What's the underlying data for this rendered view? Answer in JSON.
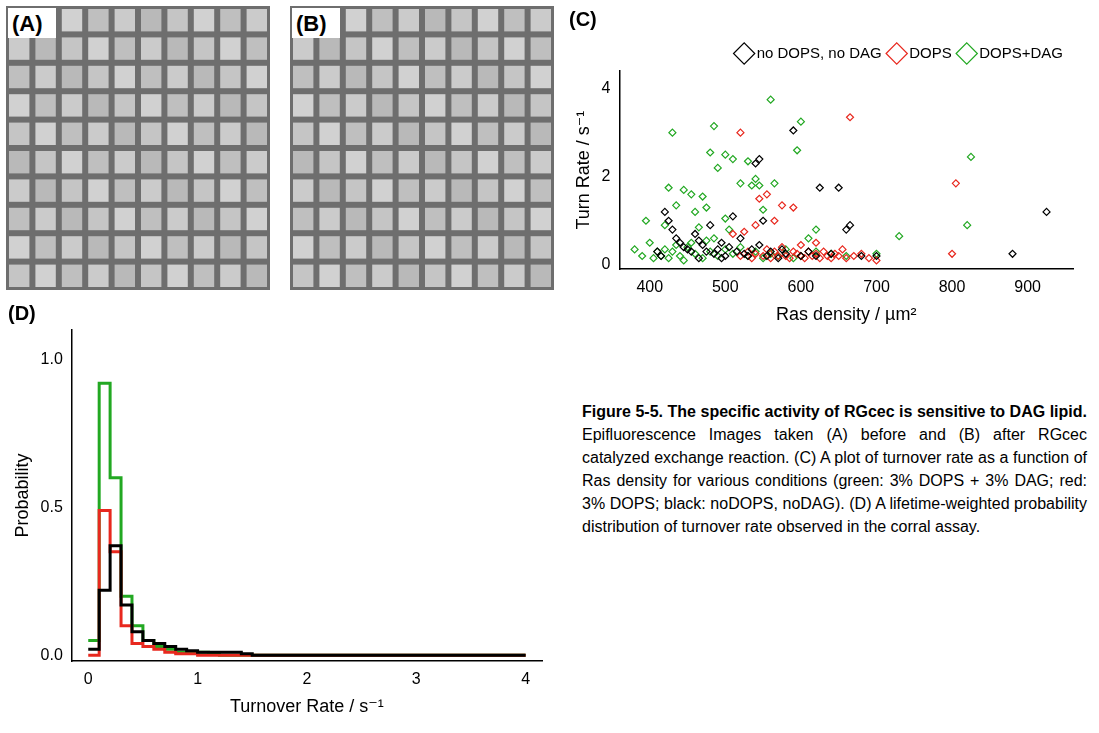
{
  "images": [
    {
      "label": "(A)"
    },
    {
      "label": "(B)"
    }
  ],
  "chart_data": [
    {
      "type": "scatter",
      "title": "(C)",
      "x_label": "Ras density / µm²",
      "y_label": "Turn Rate / s⁻¹",
      "xlim": [
        360,
        960
      ],
      "xticks": [
        400,
        500,
        600,
        700,
        800,
        900
      ],
      "ylim": [
        -0.1,
        4.4
      ],
      "yticks": [
        0,
        2,
        4
      ],
      "legend": "top right",
      "grid": false,
      "series": [
        {
          "name": "no DOPS, no DAG",
          "color": "#000000",
          "marker": "diamond",
          "x": [
            410,
            415,
            420,
            425,
            430,
            435,
            440,
            445,
            450,
            455,
            460,
            465,
            465,
            470,
            475,
            480,
            485,
            490,
            495,
            495,
            500,
            505,
            510,
            515,
            520,
            525,
            530,
            535,
            540,
            545,
            545,
            550,
            555,
            560,
            570,
            575,
            580,
            590,
            600,
            610,
            620,
            625,
            640,
            650,
            660,
            665,
            680,
            700,
            880,
            925
          ],
          "values": [
            0.3,
            0.2,
            1.2,
            1.0,
            0.8,
            0.6,
            0.5,
            0.4,
            0.35,
            0.3,
            0.7,
            0.55,
            0.15,
            0.45,
            0.3,
            0.9,
            0.25,
            0.35,
            0.5,
            0.15,
            0.2,
            0.4,
            1.1,
            0.3,
            0.6,
            0.25,
            0.2,
            0.35,
            2.3,
            2.4,
            0.45,
            1.0,
            0.2,
            0.3,
            0.15,
            0.35,
            0.25,
            3.05,
            0.2,
            0.3,
            0.2,
            1.75,
            0.25,
            1.75,
            0.8,
            0.9,
            0.2,
            0.2,
            0.25,
            1.2
          ]
        },
        {
          "name": "DOPS",
          "color": "#e8281e",
          "marker": "diamond",
          "x": [
            510,
            520,
            520,
            525,
            530,
            535,
            540,
            540,
            545,
            550,
            555,
            555,
            560,
            565,
            565,
            570,
            575,
            575,
            580,
            585,
            590,
            590,
            595,
            600,
            600,
            605,
            610,
            615,
            620,
            620,
            625,
            630,
            635,
            640,
            645,
            650,
            655,
            660,
            665,
            670,
            680,
            690,
            700,
            800,
            805
          ],
          "values": [
            0.7,
            3.0,
            0.2,
            0.75,
            0.3,
            0.15,
            0.9,
            0.25,
            1.5,
            0.2,
            1.6,
            0.35,
            0.15,
            1.0,
            0.3,
            0.2,
            1.35,
            0.4,
            0.2,
            0.15,
            1.3,
            0.3,
            0.25,
            0.2,
            0.45,
            0.15,
            0.3,
            0.2,
            0.25,
            0.5,
            0.15,
            0.3,
            0.2,
            0.15,
            0.25,
            0.2,
            0.35,
            0.15,
            3.35,
            0.2,
            0.25,
            0.15,
            0.1,
            0.25,
            1.85
          ]
        },
        {
          "name": "DOPS+DAG",
          "color": "#22a822",
          "marker": "diamond",
          "x": [
            380,
            390,
            395,
            400,
            405,
            410,
            415,
            420,
            420,
            425,
            425,
            430,
            430,
            435,
            435,
            440,
            445,
            445,
            450,
            455,
            455,
            460,
            460,
            465,
            470,
            470,
            475,
            475,
            480,
            480,
            485,
            485,
            490,
            490,
            500,
            500,
            500,
            505,
            510,
            510,
            520,
            520,
            530,
            530,
            535,
            540,
            540,
            545,
            550,
            550,
            560,
            560,
            565,
            570,
            580,
            590,
            595,
            600,
            600,
            610,
            620,
            620,
            640,
            660,
            700,
            730,
            820,
            825
          ],
          "values": [
            0.35,
            0.2,
            1.0,
            0.5,
            0.15,
            0.3,
            0.2,
            0.9,
            0.35,
            1.75,
            0.15,
            3.0,
            0.3,
            1.35,
            0.45,
            0.2,
            1.7,
            0.1,
            0.4,
            1.6,
            0.5,
            1.2,
            0.25,
            0.85,
            1.55,
            0.15,
            1.3,
            0.55,
            2.55,
            0.3,
            3.15,
            0.6,
            2.2,
            0.2,
            2.5,
            1.05,
            0.35,
            0.8,
            2.4,
            0.25,
            1.85,
            0.4,
            2.35,
            0.2,
            1.8,
            1.95,
            0.3,
            1.8,
            1.25,
            0.15,
            3.75,
            0.25,
            1.85,
            0.2,
            0.35,
            0.15,
            2.6,
            3.25,
            0.2,
            0.6,
            0.8,
            0.3,
            0.25,
            0.2,
            0.25,
            0.65,
            0.9,
            2.45
          ]
        }
      ]
    },
    {
      "type": "histogram",
      "title": "(D)",
      "x_label": "Turnover Rate / s⁻¹",
      "y_label": "Probability",
      "xlim": [
        -0.15,
        4.15
      ],
      "xticks": [
        0,
        1,
        2,
        3,
        4
      ],
      "ylim": [
        -0.02,
        1.1
      ],
      "yticks": [
        {
          "value": 0,
          "label": "0.0"
        },
        {
          "value": 0.5,
          "label": "0.5"
        },
        {
          "value": 1,
          "label": "1.0"
        }
      ],
      "grid": false,
      "bins": [
        0,
        0.1,
        0.2,
        0.3,
        0.4,
        0.5,
        0.6,
        0.7,
        0.8,
        0.9,
        1,
        1.1,
        1.2,
        1.3,
        1.4,
        1.5,
        1.6,
        1.7,
        1.8,
        1.9,
        2,
        2.1,
        2.2,
        2.3,
        2.4,
        2.5,
        2.6,
        2.7,
        2.8,
        2.9,
        3,
        3.1,
        3.2,
        3.3,
        3.4,
        3.5,
        3.6,
        3.7,
        3.8,
        3.9,
        4
      ],
      "series": [
        {
          "color": "#000000",
          "values": [
            0.02,
            0.22,
            0.37,
            0.17,
            0.08,
            0.05,
            0.04,
            0.03,
            0.02,
            0.015,
            0.01,
            0.01,
            0.01,
            0.01,
            0.005,
            0,
            0,
            0,
            0,
            0,
            0,
            0,
            0,
            0,
            0,
            0,
            0,
            0,
            0,
            0,
            0,
            0,
            0,
            0,
            0,
            0,
            0,
            0,
            0,
            0
          ]
        },
        {
          "color": "#e8281e",
          "values": [
            0,
            0.49,
            0.35,
            0.1,
            0.04,
            0.03,
            0.02,
            0.01,
            0.005,
            0.005,
            0,
            0,
            0,
            0,
            0,
            0,
            0,
            0,
            0,
            0,
            0,
            0,
            0,
            0,
            0,
            0,
            0,
            0,
            0,
            0,
            0,
            0,
            0,
            0,
            0,
            0,
            0,
            0,
            0,
            0
          ]
        },
        {
          "color": "#22a822",
          "values": [
            0.05,
            0.92,
            0.6,
            0.2,
            0.1,
            0.05,
            0.03,
            0.02,
            0.01,
            0.01,
            0.01,
            0.005,
            0,
            0,
            0,
            0,
            0,
            0,
            0,
            0,
            0,
            0,
            0,
            0,
            0,
            0,
            0,
            0,
            0,
            0,
            0,
            0,
            0,
            0,
            0,
            0,
            0,
            0,
            0,
            0
          ]
        }
      ]
    }
  ],
  "caption": {
    "heading": "Figure 5-5. The specific activity of RGcec is sensitive to DAG lipid.",
    "text": "Epifluorescence Images taken (A) before and (B) after RGcec catalyzed exchange reaction. (C) A plot of turnover rate as a function of Ras density for various conditions (green: 3% DOPS + 3% DAG; red: 3% DOPS; black: noDOPS, noDAG). (D) A lifetime-weighted probability distribution of turnover rate observed in the corral assay."
  }
}
